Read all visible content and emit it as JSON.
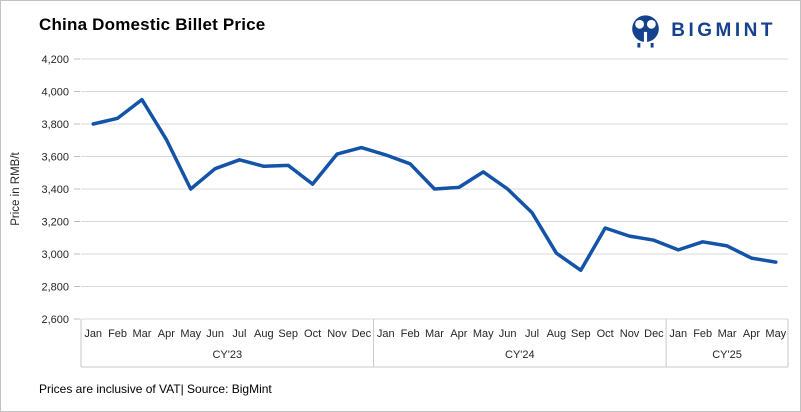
{
  "header": {
    "title": "China Domestic Billet Price",
    "logo_text": "BIGMINT",
    "logo_color": "#16418c"
  },
  "chart_data": {
    "type": "line",
    "title": "China Domestic Billet Price",
    "xlabel": "",
    "ylabel": "Price in RMB/t",
    "ylim": [
      2600,
      4200
    ],
    "ytick_step": 200,
    "yticks": [
      2600,
      2800,
      3000,
      3200,
      3400,
      3600,
      3800,
      4000,
      4200
    ],
    "ytick_labels": [
      "2,600",
      "2,800",
      "3,000",
      "3,200",
      "3,400",
      "3,600",
      "3,800",
      "4,000",
      "4,200"
    ],
    "grid": true,
    "legend": "none",
    "line_color": "#1353a8",
    "grid_color": "#d9d9d9",
    "axis_band_color": "#c9c9c9",
    "label_color": "#262626",
    "year_groups": [
      {
        "label": "CY'23",
        "months": [
          "Jan",
          "Feb",
          "Mar",
          "Apr",
          "May",
          "Jun",
          "Jul",
          "Aug",
          "Sep",
          "Oct",
          "Nov",
          "Dec"
        ]
      },
      {
        "label": "CY'24",
        "months": [
          "Jan",
          "Feb",
          "Mar",
          "Apr",
          "May",
          "Jun",
          "Jul",
          "Aug",
          "Sep",
          "Oct",
          "Nov",
          "Dec"
        ]
      },
      {
        "label": "CY'25",
        "months": [
          "Jan",
          "Feb",
          "Mar",
          "Apr",
          "May"
        ]
      }
    ],
    "series": [
      {
        "name": "China Domestic Billet Price",
        "values": [
          3800,
          3835,
          3950,
          3705,
          3400,
          3525,
          3580,
          3540,
          3545,
          3430,
          3615,
          3655,
          3610,
          3555,
          3400,
          3410,
          3505,
          3400,
          3255,
          3005,
          2900,
          3160,
          3110,
          3085,
          3025,
          3075,
          3050,
          2975,
          2950
        ]
      }
    ]
  },
  "footer": {
    "note": "Prices are inclusive of VAT| Source: BigMint"
  }
}
